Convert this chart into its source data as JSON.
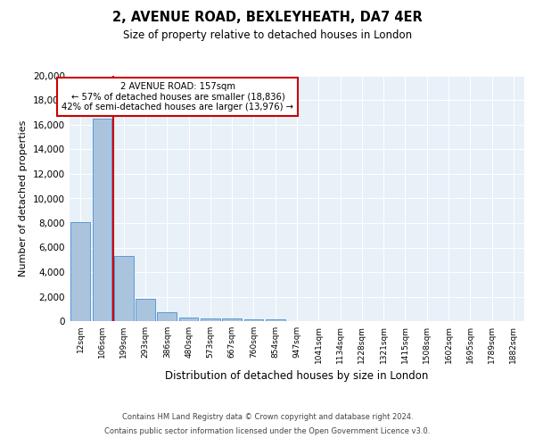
{
  "title": "2, AVENUE ROAD, BEXLEYHEATH, DA7 4ER",
  "subtitle": "Size of property relative to detached houses in London",
  "xlabel": "Distribution of detached houses by size in London",
  "ylabel": "Number of detached properties",
  "bin_labels": [
    "12sqm",
    "106sqm",
    "199sqm",
    "293sqm",
    "386sqm",
    "480sqm",
    "573sqm",
    "667sqm",
    "760sqm",
    "854sqm",
    "947sqm",
    "1041sqm",
    "1134sqm",
    "1228sqm",
    "1321sqm",
    "1415sqm",
    "1508sqm",
    "1602sqm",
    "1695sqm",
    "1789sqm",
    "1882sqm"
  ],
  "bar_heights": [
    8100,
    16500,
    5300,
    1850,
    700,
    300,
    225,
    200,
    175,
    125,
    0,
    0,
    0,
    0,
    0,
    0,
    0,
    0,
    0,
    0,
    0
  ],
  "bar_color": "#aac4de",
  "bar_edge_color": "#5b9bd5",
  "bg_color": "#e8f0f8",
  "grid_color": "#ffffff",
  "annotation_title": "2 AVENUE ROAD: 157sqm",
  "annotation_line1": "← 57% of detached houses are smaller (18,836)",
  "annotation_line2": "42% of semi-detached houses are larger (13,976) →",
  "annotation_box_color": "#ffffff",
  "annotation_border_color": "#cc0000",
  "red_line_color": "#cc0000",
  "red_line_x": 1.5,
  "ylim": [
    0,
    20000
  ],
  "yticks": [
    0,
    2000,
    4000,
    6000,
    8000,
    10000,
    12000,
    14000,
    16000,
    18000,
    20000
  ],
  "footer_line1": "Contains HM Land Registry data © Crown copyright and database right 2024.",
  "footer_line2": "Contains public sector information licensed under the Open Government Licence v3.0."
}
